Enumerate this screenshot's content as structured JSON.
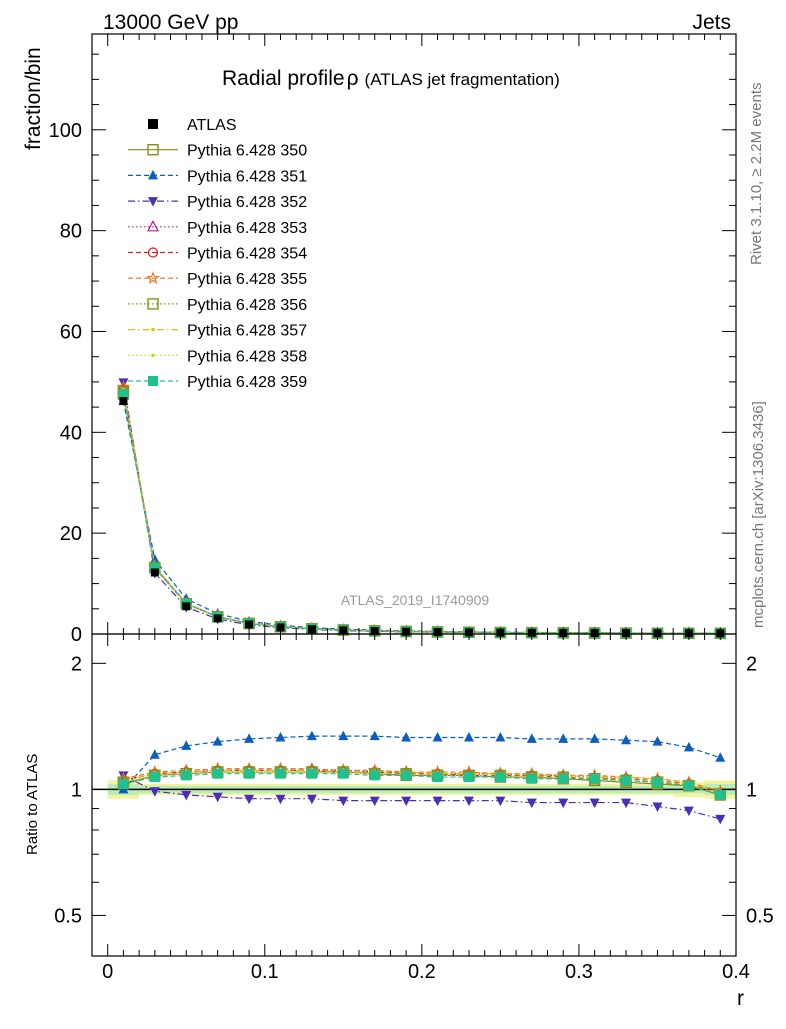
{
  "header": {
    "energy_label": "13000 GeV pp",
    "process_label": "Jets"
  },
  "side_labels": {
    "rivet": "Rivet 3.1.10, ≥ 2.2M events",
    "mcplots": "mcplots.cern.ch [arXiv:1306.3436]"
  },
  "chart_data": [
    {
      "type": "line",
      "panel": "main",
      "title": "Radial profile ρ (ATLAS jet fragmentation)",
      "title_main": "Radial profile",
      "title_symbol": "ρ",
      "title_paren": "(ATLAS jet fragmentation)",
      "watermark": "ATLAS_2019_I1740909",
      "xlabel": "r",
      "ylabel": "fraction/bin",
      "xlim": [
        -0.01,
        0.4
      ],
      "ylim": [
        0,
        119
      ],
      "x_ticks": [
        "0",
        "0.1",
        "0.2",
        "0.3",
        "0.4"
      ],
      "y_ticks": [
        "0",
        "20",
        "40",
        "60",
        "80",
        "100"
      ],
      "legend_position": "top-left",
      "x": [
        0.01,
        0.03,
        0.05,
        0.07,
        0.09,
        0.11,
        0.13,
        0.15,
        0.17,
        0.19,
        0.21,
        0.23,
        0.25,
        0.27,
        0.29,
        0.31,
        0.33,
        0.35,
        0.37,
        0.39
      ],
      "reference": {
        "name": "ATLAS",
        "values": [
          46.2,
          12.2,
          5.5,
          3.1,
          1.9,
          1.3,
          0.95,
          0.72,
          0.57,
          0.46,
          0.38,
          0.32,
          0.27,
          0.24,
          0.21,
          0.19,
          0.17,
          0.15,
          0.14,
          0.13
        ]
      },
      "series": [
        {
          "name": "Pythia 6.428 350",
          "color": "#8a8a1a",
          "marker": "open-square",
          "dash": "solid"
        },
        {
          "name": "Pythia 6.428 351",
          "color": "#0d5dbf",
          "marker": "filled-triangle-up",
          "dash": "dashed"
        },
        {
          "name": "Pythia 6.428 352",
          "color": "#4a2fb5",
          "marker": "filled-triangle-down",
          "dash": "dashdot"
        },
        {
          "name": "Pythia 6.428 353",
          "color": "#c01a8a",
          "marker": "open-triangle-up",
          "dash": "dotted"
        },
        {
          "name": "Pythia 6.428 354",
          "color": "#d42020",
          "marker": "open-circle",
          "dash": "dashed"
        },
        {
          "name": "Pythia 6.428 355",
          "color": "#f07018",
          "marker": "open-star",
          "dash": "dashed"
        },
        {
          "name": "Pythia 6.428 356",
          "color": "#7a9a10",
          "marker": "open-square",
          "dash": "dotted"
        },
        {
          "name": "Pythia 6.428 357",
          "color": "#d8c418",
          "marker": "small-dot",
          "dash": "dashdot"
        },
        {
          "name": "Pythia 6.428 358",
          "color": "#c0d820",
          "marker": "small-dot",
          "dash": "dotted"
        },
        {
          "name": "Pythia 6.428 359",
          "color": "#20c090",
          "marker": "filled-square",
          "dash": "dashed"
        }
      ]
    },
    {
      "type": "line",
      "panel": "ratio",
      "ylabel": "Ratio to ATLAS",
      "xlabel": "r",
      "scale": "log",
      "ylim": [
        0.4,
        2.35
      ],
      "y_ticks": [
        "0.5",
        "1",
        "2"
      ],
      "reference_value": 1,
      "series": [
        {
          "name": "Pythia 6.428 350",
          "values": [
            1.03,
            1.08,
            1.09,
            1.1,
            1.1,
            1.1,
            1.1,
            1.1,
            1.09,
            1.08,
            1.08,
            1.08,
            1.07,
            1.07,
            1.06,
            1.05,
            1.04,
            1.03,
            1.02,
            0.97
          ]
        },
        {
          "name": "Pythia 6.428 351",
          "values": [
            1.0,
            1.21,
            1.27,
            1.3,
            1.32,
            1.33,
            1.34,
            1.34,
            1.34,
            1.33,
            1.33,
            1.33,
            1.33,
            1.32,
            1.32,
            1.32,
            1.31,
            1.3,
            1.26,
            1.19
          ]
        },
        {
          "name": "Pythia 6.428 352",
          "values": [
            1.08,
            0.99,
            0.97,
            0.96,
            0.95,
            0.95,
            0.95,
            0.94,
            0.94,
            0.94,
            0.94,
            0.94,
            0.94,
            0.93,
            0.93,
            0.93,
            0.93,
            0.91,
            0.89,
            0.85
          ]
        },
        {
          "name": "Pythia 6.428 353",
          "values": [
            1.05,
            1.09,
            1.1,
            1.11,
            1.11,
            1.11,
            1.11,
            1.11,
            1.1,
            1.1,
            1.09,
            1.09,
            1.09,
            1.08,
            1.08,
            1.07,
            1.06,
            1.05,
            1.03,
            0.98
          ]
        },
        {
          "name": "Pythia 6.428 354",
          "values": [
            1.05,
            1.09,
            1.1,
            1.11,
            1.11,
            1.11,
            1.11,
            1.1,
            1.1,
            1.09,
            1.09,
            1.08,
            1.08,
            1.08,
            1.07,
            1.06,
            1.06,
            1.05,
            1.03,
            0.98
          ]
        },
        {
          "name": "Pythia 6.428 355",
          "values": [
            1.06,
            1.1,
            1.11,
            1.12,
            1.12,
            1.12,
            1.12,
            1.11,
            1.11,
            1.1,
            1.1,
            1.1,
            1.09,
            1.09,
            1.08,
            1.08,
            1.07,
            1.06,
            1.04,
            0.99
          ]
        },
        {
          "name": "Pythia 6.428 356",
          "values": [
            1.04,
            1.08,
            1.09,
            1.1,
            1.1,
            1.1,
            1.1,
            1.1,
            1.09,
            1.09,
            1.08,
            1.08,
            1.08,
            1.07,
            1.07,
            1.06,
            1.05,
            1.04,
            1.02,
            0.97
          ]
        },
        {
          "name": "Pythia 6.428 357",
          "values": [
            1.05,
            1.09,
            1.1,
            1.11,
            1.11,
            1.11,
            1.11,
            1.1,
            1.1,
            1.1,
            1.09,
            1.09,
            1.09,
            1.08,
            1.08,
            1.07,
            1.07,
            1.06,
            1.04,
            0.99
          ]
        },
        {
          "name": "Pythia 6.428 358",
          "values": [
            1.04,
            1.08,
            1.09,
            1.1,
            1.1,
            1.1,
            1.1,
            1.1,
            1.09,
            1.09,
            1.08,
            1.08,
            1.08,
            1.07,
            1.07,
            1.06,
            1.06,
            1.05,
            1.03,
            0.98
          ]
        },
        {
          "name": "Pythia 6.428 359",
          "values": [
            1.03,
            1.07,
            1.08,
            1.09,
            1.09,
            1.09,
            1.09,
            1.09,
            1.08,
            1.08,
            1.07,
            1.07,
            1.07,
            1.06,
            1.06,
            1.06,
            1.05,
            1.04,
            1.02,
            0.97
          ]
        }
      ],
      "uncertainty_band": {
        "inner": [
          0.03,
          0.02,
          0.02,
          0.02,
          0.02,
          0.02,
          0.02,
          0.02,
          0.02,
          0.02,
          0.02,
          0.02,
          0.02,
          0.02,
          0.02,
          0.02,
          0.02,
          0.02,
          0.02,
          0.03
        ],
        "outer": [
          0.05,
          0.03,
          0.03,
          0.03,
          0.03,
          0.03,
          0.03,
          0.03,
          0.03,
          0.03,
          0.03,
          0.03,
          0.03,
          0.03,
          0.03,
          0.03,
          0.03,
          0.03,
          0.04,
          0.05
        ]
      }
    }
  ]
}
